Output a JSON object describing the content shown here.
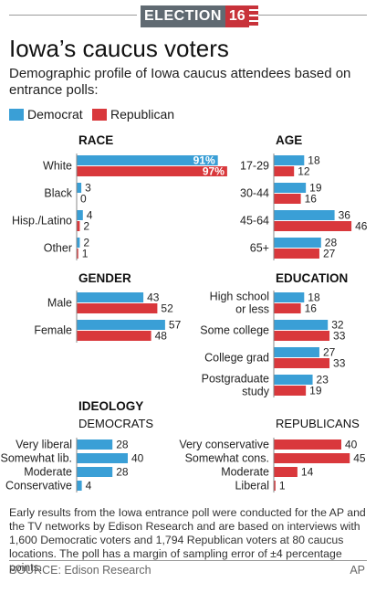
{
  "header": {
    "banner_word": "ELECTION",
    "banner_number": "16"
  },
  "title": "Iowa’s caucus voters",
  "subtitle": "Demographic profile of Iowa caucus attendees based on entrance polls:",
  "legend": [
    {
      "name": "Democrat",
      "color": "#3a9fd6"
    },
    {
      "name": "Republican",
      "color": "#d9383c"
    }
  ],
  "colors": {
    "democrat": "#3a9fd6",
    "republican": "#d9383c"
  },
  "chart_data": [
    {
      "type": "bar",
      "title": "RACE",
      "categories": [
        "White",
        "Black",
        "Hisp./Latino",
        "Other"
      ],
      "series": [
        {
          "name": "Democrat",
          "values": [
            91,
            3,
            4,
            2
          ]
        },
        {
          "name": "Republican",
          "values": [
            97,
            0,
            2,
            1
          ]
        }
      ],
      "value_labels": [
        [
          "91%",
          "3",
          "4",
          "2"
        ],
        [
          "97%",
          "0",
          "2",
          "1"
        ]
      ]
    },
    {
      "type": "bar",
      "title": "AGE",
      "categories": [
        "17-29",
        "30-44",
        "45-64",
        "65+"
      ],
      "series": [
        {
          "name": "Democrat",
          "values": [
            18,
            19,
            36,
            28
          ]
        },
        {
          "name": "Republican",
          "values": [
            12,
            16,
            46,
            27
          ]
        }
      ]
    },
    {
      "type": "bar",
      "title": "GENDER",
      "categories": [
        "Male",
        "Female"
      ],
      "series": [
        {
          "name": "Democrat",
          "values": [
            43,
            57
          ]
        },
        {
          "name": "Republican",
          "values": [
            52,
            48
          ]
        }
      ]
    },
    {
      "type": "bar",
      "title": "EDUCATION",
      "categories": [
        "High school or less",
        "Some college",
        "College grad",
        "Postgraduate study"
      ],
      "category_lines": [
        [
          "High school",
          "or less"
        ],
        [
          "Some college"
        ],
        [
          "College grad"
        ],
        [
          "Postgraduate",
          "study"
        ]
      ],
      "series": [
        {
          "name": "Democrat",
          "values": [
            18,
            32,
            27,
            23
          ]
        },
        {
          "name": "Republican",
          "values": [
            16,
            33,
            33,
            19
          ]
        }
      ]
    },
    {
      "type": "bar",
      "title": "IDEOLOGY",
      "subtitle": "DEMOCRATS",
      "categories": [
        "Very liberal",
        "Somewhat lib.",
        "Moderate",
        "Conservative"
      ],
      "series": [
        {
          "name": "Democrat",
          "values": [
            28,
            40,
            28,
            4
          ]
        }
      ]
    },
    {
      "type": "bar",
      "subtitle": "REPUBLICANS",
      "categories": [
        "Very conservative",
        "Somewhat cons.",
        "Moderate",
        "Liberal"
      ],
      "series": [
        {
          "name": "Republican",
          "values": [
            40,
            45,
            14,
            1
          ]
        }
      ]
    }
  ],
  "footnote": "Early results from the Iowa entrance poll were conducted for the AP and the TV networks by Edison Research and are based on interviews with 1,600 Democratic voters and 1,794 Republican voters at 80 caucus locations. The poll has a margin of sampling error of ±4 percentage points.",
  "source": "SOURCE: Edison Research",
  "credit": "AP"
}
